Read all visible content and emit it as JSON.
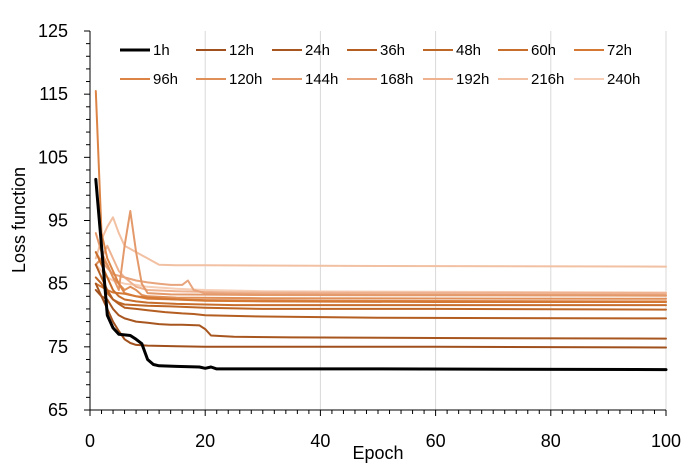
{
  "chart_data": {
    "type": "line",
    "title": "",
    "xlabel": "Epoch",
    "ylabel": "Loss function",
    "xlim": [
      0,
      100
    ],
    "ylim": [
      65,
      125
    ],
    "xticks": [
      0,
      20,
      40,
      60,
      80,
      100
    ],
    "yticks": [
      65,
      75,
      85,
      95,
      105,
      115,
      125
    ],
    "grid": "vertical",
    "legend_position": "top",
    "series": [
      {
        "name": "1h",
        "color": "#000000",
        "points": [
          [
            1,
            101.5
          ],
          [
            2,
            91
          ],
          [
            3,
            80
          ],
          [
            4,
            78
          ],
          [
            5,
            77
          ],
          [
            7,
            76.8
          ],
          [
            8,
            76.2
          ],
          [
            9,
            75.5
          ],
          [
            10,
            73
          ],
          [
            11,
            72.2
          ],
          [
            12,
            72
          ],
          [
            15,
            71.9
          ],
          [
            19,
            71.8
          ],
          [
            20,
            71.6
          ],
          [
            21,
            71.8
          ],
          [
            22,
            71.5
          ],
          [
            30,
            71.5
          ],
          [
            50,
            71.5
          ],
          [
            100,
            71.4
          ]
        ]
      },
      {
        "name": "12h",
        "color": "#a0501c",
        "points": [
          [
            1,
            84
          ],
          [
            2,
            83
          ],
          [
            3,
            81
          ],
          [
            4,
            79
          ],
          [
            5,
            77.5
          ],
          [
            6,
            76.2
          ],
          [
            7,
            75.6
          ],
          [
            8,
            75.3
          ],
          [
            10,
            75.2
          ],
          [
            15,
            75.1
          ],
          [
            20,
            75
          ],
          [
            25,
            75
          ],
          [
            60,
            75
          ],
          [
            100,
            74.9
          ]
        ]
      },
      {
        "name": "24h",
        "color": "#a8561f",
        "points": [
          [
            1,
            85
          ],
          [
            2,
            83
          ],
          [
            3,
            82.5
          ],
          [
            4,
            81
          ],
          [
            5,
            80
          ],
          [
            6,
            79.5
          ],
          [
            8,
            79
          ],
          [
            10,
            78.8
          ],
          [
            12,
            78.6
          ],
          [
            14,
            78.5
          ],
          [
            16,
            78.5
          ],
          [
            19,
            78.4
          ],
          [
            20,
            77.8
          ],
          [
            21,
            76.8
          ],
          [
            25,
            76.6
          ],
          [
            35,
            76.5
          ],
          [
            60,
            76.4
          ],
          [
            100,
            76.3
          ]
        ]
      },
      {
        "name": "36h",
        "color": "#b45e22",
        "points": [
          [
            1,
            88
          ],
          [
            2,
            86
          ],
          [
            3,
            84
          ],
          [
            4,
            82.5
          ],
          [
            5,
            81.8
          ],
          [
            6,
            81.2
          ],
          [
            8,
            81
          ],
          [
            10,
            80.8
          ],
          [
            13,
            80.5
          ],
          [
            16,
            80.3
          ],
          [
            18,
            80.2
          ],
          [
            20,
            80
          ],
          [
            30,
            79.8
          ],
          [
            50,
            79.6
          ],
          [
            100,
            79.5
          ]
        ]
      },
      {
        "name": "48h",
        "color": "#be6626",
        "points": [
          [
            1,
            86
          ],
          [
            2,
            85
          ],
          [
            3,
            83.5
          ],
          [
            4,
            82.5
          ],
          [
            5,
            82
          ],
          [
            6,
            81.7
          ],
          [
            8,
            81.6
          ],
          [
            10,
            81.5
          ],
          [
            14,
            81.4
          ],
          [
            20,
            81.2
          ],
          [
            30,
            81
          ],
          [
            60,
            81
          ],
          [
            100,
            80.9
          ]
        ]
      },
      {
        "name": "60h",
        "color": "#c86e2c",
        "points": [
          [
            1,
            90
          ],
          [
            2,
            88
          ],
          [
            3,
            86
          ],
          [
            4,
            84
          ],
          [
            5,
            83
          ],
          [
            6,
            82.5
          ],
          [
            8,
            82.2
          ],
          [
            10,
            82
          ],
          [
            15,
            81.8
          ],
          [
            20,
            81.7
          ],
          [
            25,
            81.6
          ],
          [
            60,
            81.6
          ],
          [
            100,
            81.6
          ]
        ]
      },
      {
        "name": "72h",
        "color": "#d47834",
        "points": [
          [
            1,
            85
          ],
          [
            2,
            84.5
          ],
          [
            3,
            84
          ],
          [
            4,
            83.6
          ],
          [
            6,
            83.4
          ],
          [
            8,
            83
          ],
          [
            10,
            82.8
          ],
          [
            15,
            82.5
          ],
          [
            20,
            82.3
          ],
          [
            30,
            82.2
          ],
          [
            60,
            82.1
          ],
          [
            100,
            82.1
          ]
        ]
      },
      {
        "name": "96h",
        "color": "#dc8446",
        "points": [
          [
            1,
            115.5
          ],
          [
            2,
            93
          ],
          [
            3,
            89
          ],
          [
            4,
            87
          ],
          [
            5,
            85
          ],
          [
            6,
            83.5
          ],
          [
            8,
            83
          ],
          [
            10,
            82.6
          ],
          [
            20,
            82.4
          ],
          [
            40,
            82.3
          ],
          [
            100,
            82.2
          ]
        ]
      },
      {
        "name": "120h",
        "color": "#e08f58",
        "points": [
          [
            1,
            88
          ],
          [
            2,
            89
          ],
          [
            3,
            88
          ],
          [
            4,
            86
          ],
          [
            5,
            85
          ],
          [
            6,
            84
          ],
          [
            7,
            84.5
          ],
          [
            8,
            84
          ],
          [
            9,
            83.2
          ],
          [
            10,
            83
          ],
          [
            15,
            82.8
          ],
          [
            30,
            82.7
          ],
          [
            100,
            82.6
          ]
        ]
      },
      {
        "name": "144h",
        "color": "#e4996a",
        "points": [
          [
            1,
            93
          ],
          [
            2,
            90
          ],
          [
            3,
            88
          ],
          [
            4,
            86
          ],
          [
            5,
            84
          ],
          [
            6,
            91
          ],
          [
            7,
            96.5
          ],
          [
            8,
            90
          ],
          [
            9,
            85
          ],
          [
            10,
            83.5
          ],
          [
            14,
            83.3
          ],
          [
            30,
            83.2
          ],
          [
            100,
            83.1
          ]
        ]
      },
      {
        "name": "168h",
        "color": "#e8a47c",
        "points": [
          [
            1,
            90
          ],
          [
            2,
            88.5
          ],
          [
            3,
            87.5
          ],
          [
            4,
            86.5
          ],
          [
            6,
            86
          ],
          [
            8,
            85.5
          ],
          [
            10,
            85.2
          ],
          [
            12,
            85
          ],
          [
            14,
            84.8
          ],
          [
            16,
            84.8
          ],
          [
            17,
            85.5
          ],
          [
            18,
            84
          ],
          [
            20,
            83.5
          ],
          [
            30,
            83.3
          ],
          [
            100,
            83.2
          ]
        ]
      },
      {
        "name": "192h",
        "color": "#eeb290",
        "points": [
          [
            1,
            88
          ],
          [
            2,
            89
          ],
          [
            3,
            91
          ],
          [
            4,
            89
          ],
          [
            5,
            87
          ],
          [
            6,
            86
          ],
          [
            8,
            84.5
          ],
          [
            10,
            84
          ],
          [
            15,
            83.8
          ],
          [
            25,
            83.6
          ],
          [
            100,
            83.5
          ]
        ]
      },
      {
        "name": "216h",
        "color": "#f2c0a2",
        "points": [
          [
            1,
            89
          ],
          [
            2,
            92
          ],
          [
            3,
            94
          ],
          [
            4,
            95.5
          ],
          [
            5,
            93
          ],
          [
            6,
            91
          ],
          [
            7,
            90.5
          ],
          [
            8,
            90
          ],
          [
            9,
            89.5
          ],
          [
            10,
            89
          ],
          [
            11,
            88.5
          ],
          [
            12,
            88
          ],
          [
            15,
            87.9
          ],
          [
            20,
            87.9
          ],
          [
            50,
            87.8
          ],
          [
            100,
            87.7
          ]
        ]
      },
      {
        "name": "240h",
        "color": "#f6ceb6",
        "points": [
          [
            1,
            88
          ],
          [
            2,
            87
          ],
          [
            3,
            86
          ],
          [
            4,
            85.5
          ],
          [
            6,
            85
          ],
          [
            8,
            84.8
          ],
          [
            10,
            84.5
          ],
          [
            15,
            84.2
          ],
          [
            20,
            84
          ],
          [
            30,
            83.8
          ],
          [
            100,
            83.6
          ]
        ]
      }
    ]
  }
}
